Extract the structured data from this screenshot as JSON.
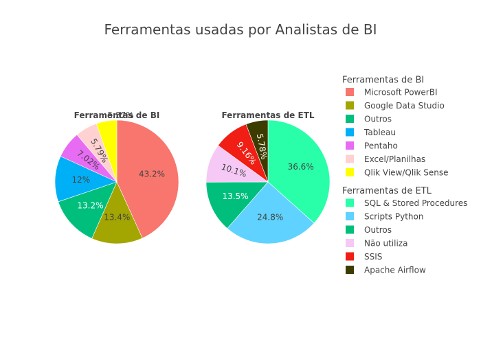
{
  "page": {
    "title": "Ferramentas usadas por Analistas de BI"
  },
  "chart_data": [
    {
      "type": "pie",
      "title": "Ferramentas de BI",
      "legend_title": "Ferramentas de BI",
      "slices": [
        {
          "label": "Microsoft PowerBI",
          "value": 43.2,
          "display": "43.2%",
          "color": "#f8766d"
        },
        {
          "label": "Google Data Studio",
          "value": 13.4,
          "display": "13.4%",
          "color": "#a3a500"
        },
        {
          "label": "Outros",
          "value": 13.2,
          "display": "13.2%",
          "color": "#00bf7d"
        },
        {
          "label": "Tableau",
          "value": 12,
          "display": "12%",
          "color": "#00b0f6"
        },
        {
          "label": "Pentaho",
          "value": 7.02,
          "display": "7.02%",
          "color": "#e76bf3"
        },
        {
          "label": "Excel/Planilhas",
          "value": 5.79,
          "display": "5.79%",
          "color": "#ffd1d1"
        },
        {
          "label": "Qlik View/Qlik Sense",
          "value": 5.37,
          "display": "5.37%",
          "color": "#ffff00"
        }
      ]
    },
    {
      "type": "pie",
      "title": "Ferramentas de ETL",
      "legend_title": "Ferramentas de ETL",
      "slices": [
        {
          "label": "SQL & Stored Procedures",
          "value": 36.6,
          "display": "36.6%",
          "color": "#28ffa8"
        },
        {
          "label": "Scripts Python",
          "value": 24.8,
          "display": "24.8%",
          "color": "#5fd2ff"
        },
        {
          "label": "Outros",
          "value": 13.5,
          "display": "13.5%",
          "color": "#00bf7d"
        },
        {
          "label": "Não utiliza",
          "value": 10.1,
          "display": "10.1%",
          "color": "#f5c8f5"
        },
        {
          "label": "SSIS",
          "value": 9.16,
          "display": "9.16%",
          "color": "#f01e14"
        },
        {
          "label": "Apache Airflow",
          "value": 5.78,
          "display": "5.78%",
          "color": "#3c3c00"
        }
      ]
    }
  ]
}
